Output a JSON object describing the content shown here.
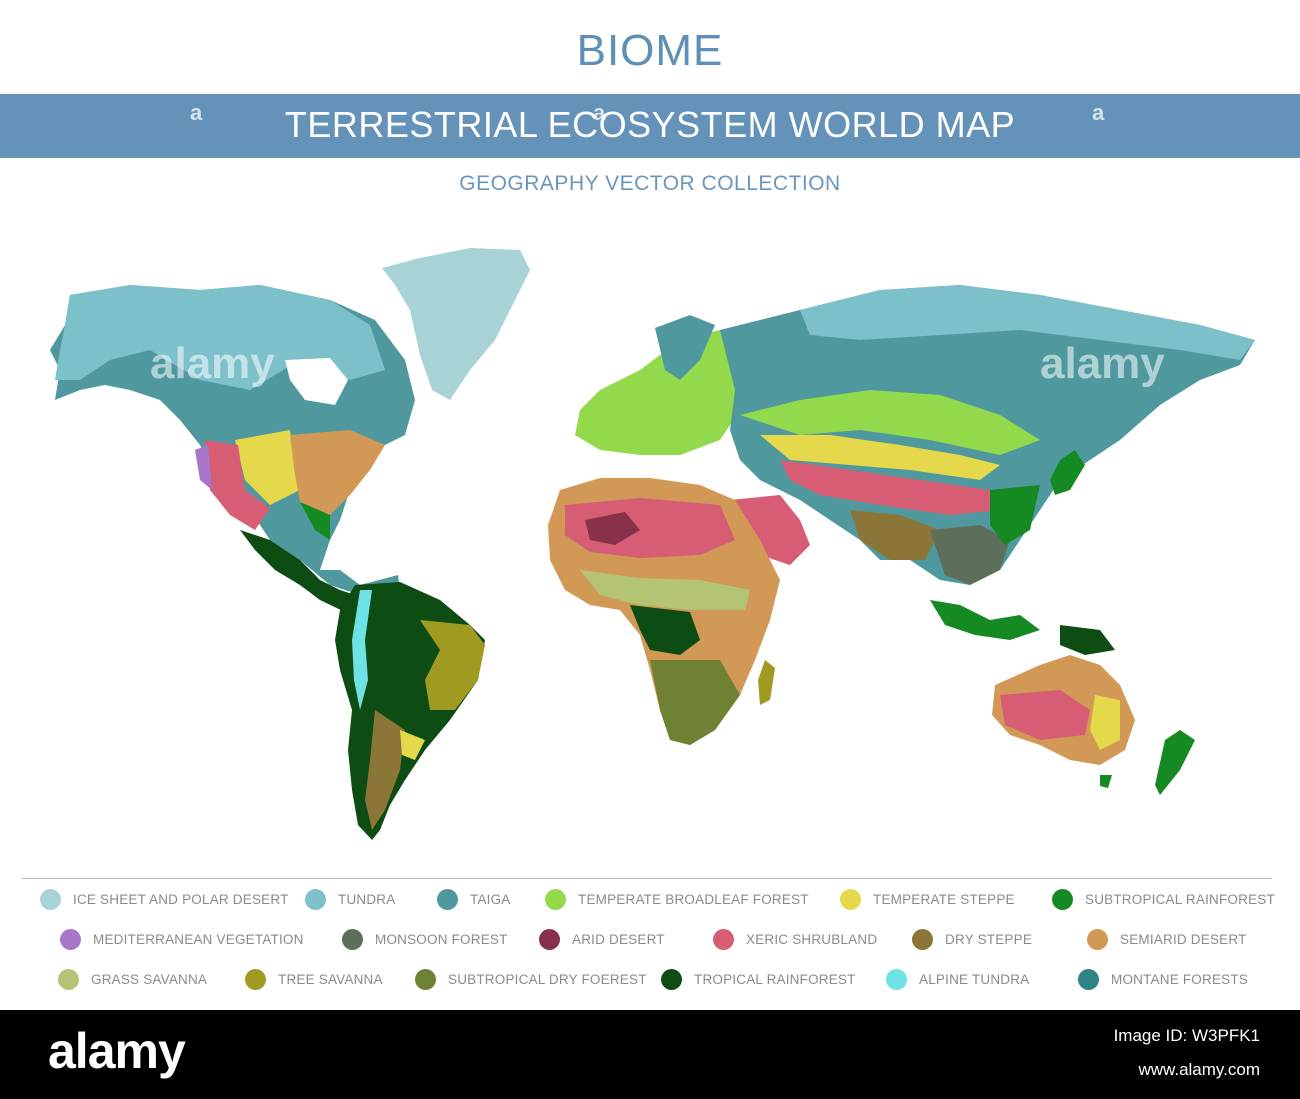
{
  "header": {
    "title": "BIOME",
    "banner": "TERRESTRIAL ECOSYSTEM WORLD MAP",
    "subtitle": "GEOGRAPHY VECTOR COLLECTION"
  },
  "watermark": {
    "icon": "a-logo-icon",
    "map_text": "alamy"
  },
  "legend": [
    {
      "label": "ICE SHEET AND POLAR DESERT",
      "color": "#a7d3d6"
    },
    {
      "label": "TUNDRA",
      "color": "#7cc0c9"
    },
    {
      "label": "TAIGA",
      "color": "#4f999e"
    },
    {
      "label": "TEMPERATE BROADLEAF FOREST",
      "color": "#93d94c"
    },
    {
      "label": "TEMPERATE STEPPE",
      "color": "#e5d84a"
    },
    {
      "label": "SUBTROPICAL RAINFOREST",
      "color": "#158a22"
    },
    {
      "label": "MEDITERRANEAN VEGETATION",
      "color": "#a877cc"
    },
    {
      "label": "MONSOON FOREST",
      "color": "#5d6f5b"
    },
    {
      "label": "ARID DESERT",
      "color": "#87314a"
    },
    {
      "label": "XERIC SHRUBLAND",
      "color": "#d65d73"
    },
    {
      "label": "DRY STEPPE",
      "color": "#8b7638"
    },
    {
      "label": "SEMIARID DESERT",
      "color": "#d29956"
    },
    {
      "label": "GRASS SAVANNA",
      "color": "#b3c574"
    },
    {
      "label": "TREE SAVANNA",
      "color": "#a09a20"
    },
    {
      "label": "SUBTROPICAL DRY FOEREST",
      "color": "#6f8132"
    },
    {
      "label": "TROPICAL RAINFOREST",
      "color": "#0d4c12"
    },
    {
      "label": "ALPINE TUNDRA",
      "color": "#6fe2e5"
    },
    {
      "label": "MONTANE FORESTS",
      "color": "#2e8484"
    }
  ],
  "footer": {
    "brand": "alamy",
    "image_id": "Image ID: W3PFK1",
    "url": "www.alamy.com"
  }
}
